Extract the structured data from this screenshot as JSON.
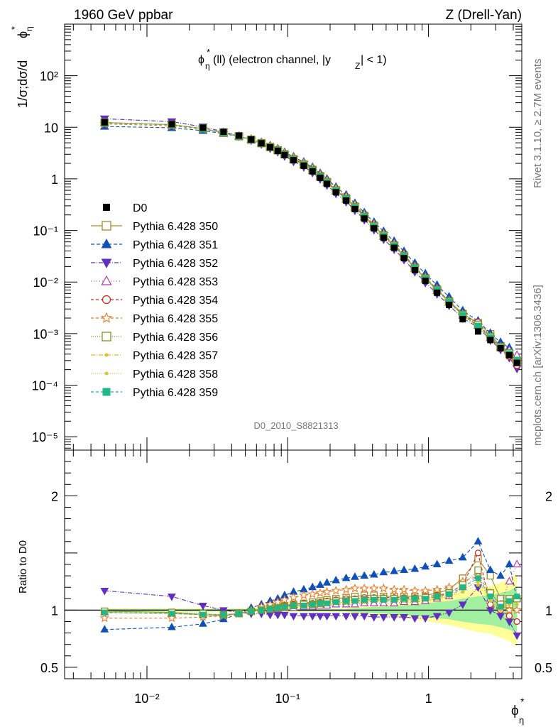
{
  "header": {
    "left": "1960 GeV ppbar",
    "right": "Z (Drell-Yan)"
  },
  "side": {
    "rivet": "Rivet 3.1.10, ≥ 2.7M events",
    "mcplots": "mcplots.cern.ch [arXiv:1306.3436]"
  },
  "plot": {
    "subtitle_main": "(ll) (electron channel, |y",
    "subtitle_tail": "| < 1)",
    "phi": "ϕ",
    "star": "*",
    "eta": "η",
    "Z": "Z",
    "watermark": "D0_2010_S8821313",
    "ylabel_prefix": "1/σ;dσ/d",
    "ratio_ylabel": "Ratio to D0"
  },
  "chart_data": {
    "type": "line",
    "xscale": "log",
    "yscale": "log",
    "xlim": [
      0.0026,
      4.6
    ],
    "ylim": [
      5.5e-06,
      1000
    ],
    "ratio_ylim": [
      0.4,
      2.4
    ],
    "legend_position": "center-left",
    "x_ticks": [
      "10⁻²",
      "10⁻¹",
      "1"
    ],
    "y_ticks": [
      "10⁻⁵",
      "10⁻⁴",
      "10⁻³",
      "10⁻²",
      "10⁻¹",
      "1",
      "10",
      "10²"
    ],
    "ratio_ticks": [
      "0.5",
      "1",
      "2"
    ],
    "x": [
      0.005,
      0.015,
      0.025,
      0.035,
      0.045,
      0.055,
      0.065,
      0.075,
      0.085,
      0.095,
      0.11,
      0.13,
      0.15,
      0.17,
      0.19,
      0.22,
      0.26,
      0.3,
      0.35,
      0.41,
      0.48,
      0.57,
      0.67,
      0.8,
      0.95,
      1.15,
      1.4,
      1.75,
      2.25,
      2.75,
      3.25,
      3.75,
      4.25
    ],
    "reference": {
      "name": "D0",
      "values": [
        12.5,
        11.5,
        9.8,
        8.2,
        6.9,
        5.8,
        4.9,
        4.1,
        3.5,
        2.9,
        2.3,
        1.8,
        1.4,
        1.05,
        0.8,
        0.55,
        0.38,
        0.26,
        0.17,
        0.11,
        0.072,
        0.046,
        0.029,
        0.017,
        0.0105,
        0.0062,
        0.0036,
        0.0019,
        0.0011,
        0.00075,
        0.00052,
        0.00038,
        0.00027
      ]
    },
    "series": [
      {
        "name": "Pythia 6.428 350",
        "color": "#a08c28",
        "marker": "open-square",
        "dash": "",
        "ratio": [
          0.99,
          0.98,
          0.96,
          0.95,
          0.97,
          0.99,
          1.01,
          1.02,
          1.03,
          1.04,
          1.05,
          1.06,
          1.07,
          1.08,
          1.09,
          1.1,
          1.11,
          1.12,
          1.13,
          1.13,
          1.12,
          1.12,
          1.12,
          1.12,
          1.13,
          1.15,
          1.18,
          1.28,
          1.45,
          1.3,
          1.1,
          1.05,
          1.1
        ]
      },
      {
        "name": "Pythia 6.428 351",
        "color": "#1050b8",
        "marker": "filled-triangle-up",
        "dash": "5,3",
        "ratio": [
          0.83,
          0.85,
          0.88,
          0.92,
          0.97,
          1.02,
          1.05,
          1.08,
          1.1,
          1.13,
          1.16,
          1.18,
          1.2,
          1.22,
          1.24,
          1.26,
          1.28,
          1.29,
          1.3,
          1.31,
          1.33,
          1.34,
          1.35,
          1.36,
          1.38,
          1.4,
          1.43,
          1.46,
          1.6,
          1.35,
          1.3,
          1.4,
          1.1
        ]
      },
      {
        "name": "Pythia 6.428 352",
        "color": "#6030c0",
        "marker": "filled-triangle-down",
        "dash": "6,2,1,2",
        "ratio": [
          1.17,
          1.12,
          1.04,
          1.0,
          0.98,
          0.97,
          0.97,
          0.96,
          0.96,
          0.96,
          0.95,
          0.95,
          0.95,
          0.95,
          0.95,
          0.95,
          0.95,
          0.95,
          0.95,
          0.94,
          0.94,
          0.94,
          0.94,
          0.93,
          0.93,
          0.95,
          0.98,
          1.05,
          1.2,
          1.0,
          0.95,
          0.9,
          0.78
        ]
      },
      {
        "name": "Pythia 6.428 353",
        "color": "#b03cb0",
        "marker": "open-triangle-up",
        "dash": "1,3",
        "ratio": [
          0.98,
          0.97,
          0.96,
          0.96,
          0.97,
          0.99,
          1.0,
          1.01,
          1.01,
          1.02,
          1.02,
          1.03,
          1.03,
          1.04,
          1.04,
          1.05,
          1.05,
          1.05,
          1.06,
          1.06,
          1.06,
          1.06,
          1.07,
          1.07,
          1.08,
          1.1,
          1.12,
          1.2,
          1.3,
          1.1,
          1.05,
          1.25,
          1.4
        ]
      },
      {
        "name": "Pythia 6.428 354",
        "color": "#d81e1e",
        "marker": "open-circle",
        "dash": "4,3",
        "ratio": [
          0.98,
          0.97,
          0.96,
          0.96,
          0.97,
          0.99,
          1.01,
          1.02,
          1.03,
          1.04,
          1.05,
          1.06,
          1.06,
          1.07,
          1.08,
          1.09,
          1.1,
          1.1,
          1.11,
          1.11,
          1.11,
          1.11,
          1.11,
          1.11,
          1.12,
          1.13,
          1.15,
          1.22,
          1.5,
          1.05,
          1.0,
          0.95,
          0.9
        ]
      },
      {
        "name": "Pythia 6.428 355",
        "color": "#ee7a20",
        "marker": "open-star",
        "dash": "4,3",
        "ratio": [
          0.93,
          0.93,
          0.94,
          0.95,
          0.97,
          1.0,
          1.03,
          1.05,
          1.07,
          1.09,
          1.11,
          1.13,
          1.14,
          1.15,
          1.16,
          1.17,
          1.18,
          1.19,
          1.19,
          1.19,
          1.19,
          1.18,
          1.18,
          1.17,
          1.17,
          1.18,
          1.2,
          1.25,
          1.3,
          1.15,
          1.05,
          1.0,
          1.0
        ]
      },
      {
        "name": "Pythia 6.428 356",
        "color": "#7c9620",
        "marker": "open-square",
        "dash": "1,2",
        "ratio": [
          0.99,
          0.98,
          0.97,
          0.96,
          0.97,
          0.99,
          1.0,
          1.01,
          1.02,
          1.03,
          1.04,
          1.05,
          1.05,
          1.06,
          1.07,
          1.08,
          1.08,
          1.09,
          1.09,
          1.1,
          1.1,
          1.1,
          1.1,
          1.1,
          1.11,
          1.12,
          1.15,
          1.22,
          1.35,
          1.15,
          1.05,
          1.1,
          1.1
        ]
      },
      {
        "name": "Pythia 6.428 357",
        "color": "#e4c020",
        "marker": "small-dot",
        "dash": "6,2,1,2",
        "ratio": [
          0.98,
          0.97,
          0.96,
          0.96,
          0.97,
          0.99,
          1.0,
          1.01,
          1.02,
          1.02,
          1.03,
          1.04,
          1.04,
          1.05,
          1.05,
          1.06,
          1.07,
          1.07,
          1.08,
          1.08,
          1.08,
          1.08,
          1.09,
          1.09,
          1.1,
          1.11,
          1.13,
          1.18,
          1.25,
          1.1,
          1.0,
          1.05,
          1.05
        ]
      },
      {
        "name": "Pythia 6.428 358",
        "color": "#c8cc30",
        "marker": "small-dot",
        "dash": "1,2",
        "ratio": [
          0.98,
          0.97,
          0.96,
          0.96,
          0.97,
          0.99,
          1.0,
          1.01,
          1.02,
          1.02,
          1.03,
          1.04,
          1.04,
          1.05,
          1.05,
          1.06,
          1.06,
          1.07,
          1.07,
          1.08,
          1.08,
          1.08,
          1.08,
          1.09,
          1.09,
          1.1,
          1.12,
          1.16,
          1.22,
          1.08,
          1.0,
          1.05,
          1.05
        ]
      },
      {
        "name": "Pythia 6.428 359",
        "color": "#20b888",
        "marker": "filled-square",
        "dash": "4,3",
        "ratio": [
          0.98,
          0.97,
          0.96,
          0.96,
          0.97,
          0.99,
          1.0,
          1.01,
          1.02,
          1.03,
          1.04,
          1.04,
          1.05,
          1.06,
          1.06,
          1.07,
          1.08,
          1.08,
          1.09,
          1.09,
          1.09,
          1.09,
          1.1,
          1.1,
          1.1,
          1.12,
          1.14,
          1.2,
          1.28,
          1.12,
          1.03,
          1.08,
          1.12
        ]
      }
    ],
    "uncertainty_band": {
      "colors": [
        "#a0f0a0",
        "#ffff99"
      ],
      "lower": [
        0.99,
        0.99,
        0.99,
        0.99,
        0.99,
        0.99,
        0.99,
        0.99,
        0.99,
        0.99,
        0.99,
        0.99,
        0.99,
        0.99,
        0.99,
        0.99,
        0.99,
        0.98,
        0.98,
        0.97,
        0.97,
        0.96,
        0.96,
        0.95,
        0.94,
        0.93,
        0.92,
        0.9,
        0.88,
        0.87,
        0.85,
        0.83,
        0.8
      ],
      "upper": [
        1.01,
        1.01,
        1.01,
        1.01,
        1.01,
        1.01,
        1.01,
        1.01,
        1.01,
        1.01,
        1.01,
        1.01,
        1.01,
        1.01,
        1.01,
        1.01,
        1.01,
        1.02,
        1.02,
        1.03,
        1.03,
        1.04,
        1.04,
        1.05,
        1.06,
        1.07,
        1.08,
        1.1,
        1.12,
        1.13,
        1.15,
        1.17,
        1.2
      ]
    }
  }
}
